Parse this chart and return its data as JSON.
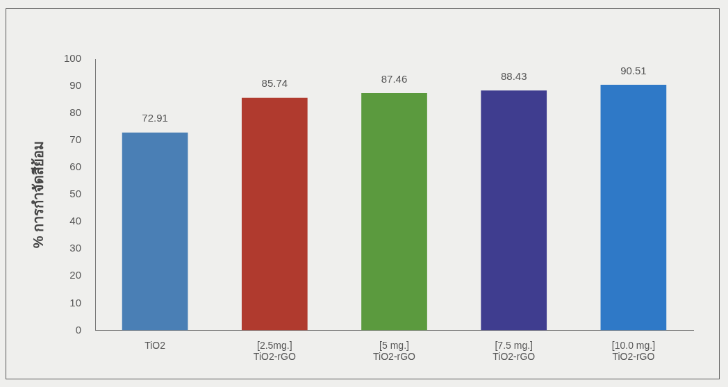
{
  "chart_data": {
    "type": "bar",
    "ylabel": "% การกำจัดสีย้อม",
    "categories": [
      "TiO2",
      "[2.5mg.]\nTiO2-rGO",
      "[5 mg.]\nTiO2-rGO",
      "[7.5 mg.]\nTiO2-rGO",
      "[10.0 mg.]\nTiO2-rGO"
    ],
    "values": [
      72.91,
      85.74,
      87.46,
      88.43,
      90.51
    ],
    "colors": [
      "#4a7fb5",
      "#b03a2e",
      "#5b9a3e",
      "#3f3d8f",
      "#2f79c7"
    ],
    "ylim": [
      0,
      100
    ],
    "yticks": [
      0,
      10,
      20,
      30,
      40,
      50,
      60,
      70,
      80,
      90,
      100
    ],
    "grid": false,
    "data_labels": true
  }
}
